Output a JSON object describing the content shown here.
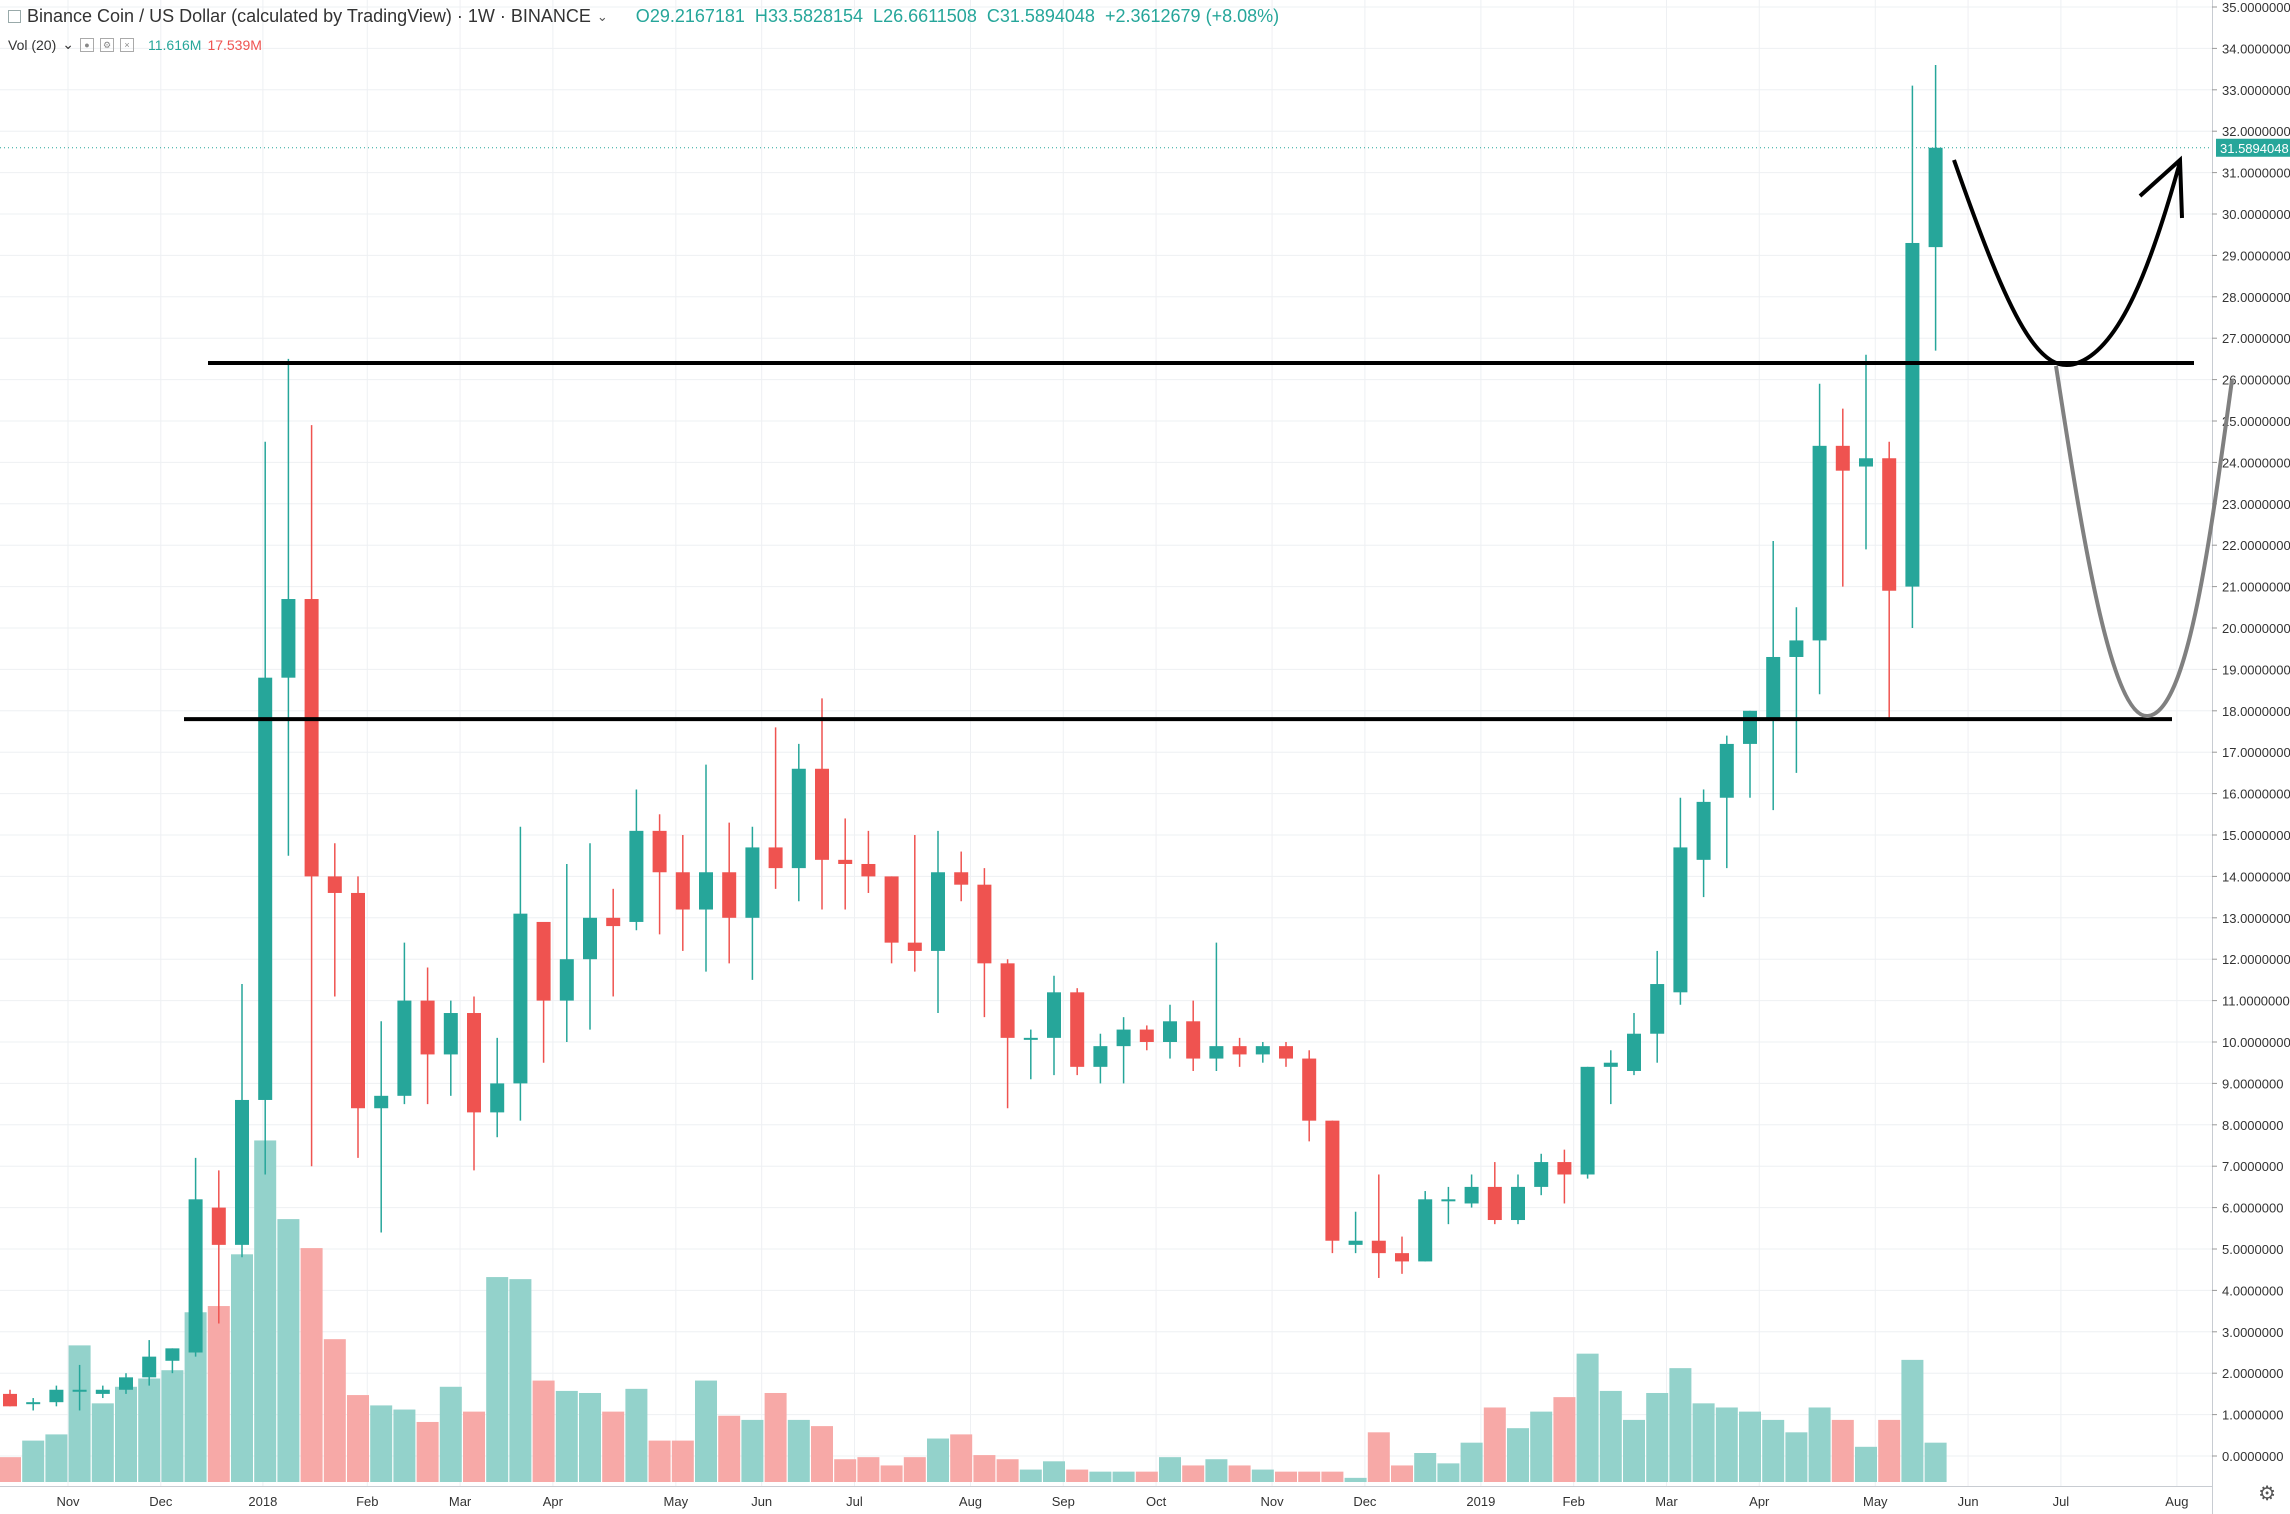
{
  "legend": {
    "symbol": "Binance Coin / US Dollar (calculated by TradingView) · 1W · BINANCE",
    "ohlc": {
      "o": "29.2167181",
      "h": "33.5828154",
      "l": "26.6611508",
      "c": "31.5894048",
      "change": "+2.3612679 (+8.08%)"
    }
  },
  "volume_legend": {
    "label": "Vol (20)",
    "v1": "11.616M",
    "v2": "17.539M"
  },
  "colors": {
    "up": "#26a69a",
    "down": "#ef5350",
    "vol_up": "#93d2cb",
    "vol_down": "#f7a9a7",
    "grid": "#eef0f3",
    "axis_text": "#333333",
    "annotation": "#000000",
    "annotation_alt": "#808080",
    "price_label_bg": "#26a69a"
  },
  "chart_data": {
    "type": "candlestick",
    "interval": "1W",
    "y_axis": {
      "min": 0,
      "max": 35,
      "step": 1,
      "tick_labels": [
        "0.0000000",
        "1.0000000",
        "2.0000000",
        "3.0000000",
        "4.0000000",
        "5.0000000",
        "6.0000000",
        "7.0000000",
        "8.0000000",
        "9.0000000",
        "10.0000000",
        "11.0000000",
        "12.0000000",
        "13.0000000",
        "14.0000000",
        "15.0000000",
        "16.0000000",
        "17.0000000",
        "18.0000000",
        "19.0000000",
        "20.0000000",
        "21.0000000",
        "22.0000000",
        "23.0000000",
        "24.0000000",
        "25.0000000",
        "26.0000000",
        "27.0000000",
        "28.0000000",
        "29.0000000",
        "30.0000000",
        "31.0000000",
        "32.0000000",
        "33.0000000",
        "34.0000000",
        "35.0000000"
      ],
      "current_price_label": "31.5894048"
    },
    "x_axis": {
      "labels": [
        {
          "text": "Nov",
          "week": 2.5
        },
        {
          "text": "Dec",
          "week": 6.5
        },
        {
          "text": "2018",
          "week": 10.9
        },
        {
          "text": "Feb",
          "week": 15.4
        },
        {
          "text": "Mar",
          "week": 19.4
        },
        {
          "text": "Apr",
          "week": 23.4
        },
        {
          "text": "May",
          "week": 28.7
        },
        {
          "text": "Jun",
          "week": 32.4
        },
        {
          "text": "Jul",
          "week": 36.4
        },
        {
          "text": "Aug",
          "week": 41.4
        },
        {
          "text": "Sep",
          "week": 45.4
        },
        {
          "text": "Oct",
          "week": 49.4
        },
        {
          "text": "Nov",
          "week": 54.4
        },
        {
          "text": "Dec",
          "week": 58.4
        },
        {
          "text": "2019",
          "week": 63.4
        },
        {
          "text": "Feb",
          "week": 67.4
        },
        {
          "text": "Mar",
          "week": 71.4
        },
        {
          "text": "Apr",
          "week": 75.4
        },
        {
          "text": "May",
          "week": 80.4
        },
        {
          "text": "Jun",
          "week": 84.4
        },
        {
          "text": "Jul",
          "week": 88.4
        },
        {
          "text": "Aug",
          "week": 93.4
        }
      ]
    },
    "candles": [
      {
        "o": 1.5,
        "h": 1.6,
        "l": 1.2,
        "c": 1.2,
        "v": 0.6
      },
      {
        "o": 1.3,
        "h": 1.4,
        "l": 1.1,
        "c": 1.3,
        "v": 1.0
      },
      {
        "o": 1.3,
        "h": 1.7,
        "l": 1.2,
        "c": 1.6,
        "v": 1.15
      },
      {
        "o": 1.6,
        "h": 2.2,
        "l": 1.1,
        "c": 1.6,
        "v": 3.3
      },
      {
        "o": 1.5,
        "h": 1.7,
        "l": 1.4,
        "c": 1.6,
        "v": 1.9
      },
      {
        "o": 1.6,
        "h": 2.0,
        "l": 1.5,
        "c": 1.9,
        "v": 2.3
      },
      {
        "o": 1.9,
        "h": 2.8,
        "l": 1.7,
        "c": 2.4,
        "v": 2.5
      },
      {
        "o": 2.3,
        "h": 2.6,
        "l": 2.0,
        "c": 2.6,
        "v": 2.7
      },
      {
        "o": 2.5,
        "h": 7.2,
        "l": 2.4,
        "c": 6.2,
        "v": 4.1
      },
      {
        "o": 6.0,
        "h": 6.9,
        "l": 3.2,
        "c": 5.1,
        "v": 4.25
      },
      {
        "o": 5.1,
        "h": 11.4,
        "l": 4.8,
        "c": 8.6,
        "v": 5.5
      },
      {
        "o": 8.6,
        "h": 24.5,
        "l": 6.8,
        "c": 18.8,
        "v": 8.25
      },
      {
        "o": 18.8,
        "h": 26.5,
        "l": 14.5,
        "c": 20.7,
        "v": 6.35
      },
      {
        "o": 20.7,
        "h": 24.9,
        "l": 7.0,
        "c": 14.0,
        "v": 5.65
      },
      {
        "o": 14.0,
        "h": 14.8,
        "l": 11.1,
        "c": 13.6,
        "v": 3.45
      },
      {
        "o": 13.6,
        "h": 14.0,
        "l": 7.2,
        "c": 8.4,
        "v": 2.1
      },
      {
        "o": 8.4,
        "h": 10.5,
        "l": 5.4,
        "c": 8.7,
        "v": 1.85
      },
      {
        "o": 8.7,
        "h": 12.4,
        "l": 8.5,
        "c": 11.0,
        "v": 1.75
      },
      {
        "o": 11.0,
        "h": 11.8,
        "l": 8.5,
        "c": 9.7,
        "v": 1.45
      },
      {
        "o": 9.7,
        "h": 11.0,
        "l": 8.7,
        "c": 10.7,
        "v": 2.3
      },
      {
        "o": 10.7,
        "h": 11.1,
        "l": 6.9,
        "c": 8.3,
        "v": 1.7
      },
      {
        "o": 8.3,
        "h": 10.1,
        "l": 7.7,
        "c": 9.0,
        "v": 4.95
      },
      {
        "o": 9.0,
        "h": 15.2,
        "l": 8.1,
        "c": 13.1,
        "v": 4.9
      },
      {
        "o": 12.9,
        "h": 12.9,
        "l": 9.5,
        "c": 11.0,
        "v": 2.45
      },
      {
        "o": 11.0,
        "h": 14.3,
        "l": 10.0,
        "c": 12.0,
        "v": 2.2
      },
      {
        "o": 12.0,
        "h": 14.8,
        "l": 10.3,
        "c": 13.0,
        "v": 2.15
      },
      {
        "o": 13.0,
        "h": 13.7,
        "l": 11.1,
        "c": 12.8,
        "v": 1.7
      },
      {
        "o": 12.9,
        "h": 16.1,
        "l": 12.7,
        "c": 15.1,
        "v": 2.25
      },
      {
        "o": 15.1,
        "h": 15.5,
        "l": 12.6,
        "c": 14.1,
        "v": 1.0
      },
      {
        "o": 14.1,
        "h": 15.0,
        "l": 12.2,
        "c": 13.2,
        "v": 1.0
      },
      {
        "o": 13.2,
        "h": 16.7,
        "l": 11.7,
        "c": 14.1,
        "v": 2.45
      },
      {
        "o": 14.1,
        "h": 15.3,
        "l": 11.9,
        "c": 13.0,
        "v": 1.6
      },
      {
        "o": 13.0,
        "h": 15.2,
        "l": 11.5,
        "c": 14.7,
        "v": 1.5
      },
      {
        "o": 14.7,
        "h": 17.6,
        "l": 13.7,
        "c": 14.2,
        "v": 2.15
      },
      {
        "o": 14.2,
        "h": 17.2,
        "l": 13.4,
        "c": 16.6,
        "v": 1.5
      },
      {
        "o": 16.6,
        "h": 18.3,
        "l": 13.2,
        "c": 14.4,
        "v": 1.35
      },
      {
        "o": 14.4,
        "h": 15.4,
        "l": 13.2,
        "c": 14.3,
        "v": 0.55
      },
      {
        "o": 14.3,
        "h": 15.1,
        "l": 13.6,
        "c": 14.0,
        "v": 0.6
      },
      {
        "o": 14.0,
        "h": 14.0,
        "l": 11.9,
        "c": 12.4,
        "v": 0.4
      },
      {
        "o": 12.4,
        "h": 15.0,
        "l": 11.7,
        "c": 12.2,
        "v": 0.6
      },
      {
        "o": 12.2,
        "h": 15.1,
        "l": 10.7,
        "c": 14.1,
        "v": 1.05
      },
      {
        "o": 14.1,
        "h": 14.6,
        "l": 13.4,
        "c": 13.8,
        "v": 1.15
      },
      {
        "o": 13.8,
        "h": 14.2,
        "l": 10.6,
        "c": 11.9,
        "v": 0.65
      },
      {
        "o": 11.9,
        "h": 12.0,
        "l": 8.4,
        "c": 10.1,
        "v": 0.55
      },
      {
        "o": 10.1,
        "h": 10.3,
        "l": 9.1,
        "c": 10.1,
        "v": 0.3
      },
      {
        "o": 10.1,
        "h": 11.6,
        "l": 9.2,
        "c": 11.2,
        "v": 0.5
      },
      {
        "o": 11.2,
        "h": 11.3,
        "l": 9.2,
        "c": 9.4,
        "v": 0.3
      },
      {
        "o": 9.4,
        "h": 10.2,
        "l": 9.0,
        "c": 9.9,
        "v": 0.25
      },
      {
        "o": 9.9,
        "h": 10.6,
        "l": 9.0,
        "c": 10.3,
        "v": 0.25
      },
      {
        "o": 10.3,
        "h": 10.4,
        "l": 9.8,
        "c": 10.0,
        "v": 0.25
      },
      {
        "o": 10.0,
        "h": 10.9,
        "l": 9.6,
        "c": 10.5,
        "v": 0.6
      },
      {
        "o": 10.5,
        "h": 11.0,
        "l": 9.3,
        "c": 9.6,
        "v": 0.4
      },
      {
        "o": 9.6,
        "h": 12.4,
        "l": 9.3,
        "c": 9.9,
        "v": 0.55
      },
      {
        "o": 9.9,
        "h": 10.1,
        "l": 9.4,
        "c": 9.7,
        "v": 0.4
      },
      {
        "o": 9.7,
        "h": 10.0,
        "l": 9.5,
        "c": 9.9,
        "v": 0.3
      },
      {
        "o": 9.9,
        "h": 10.0,
        "l": 9.4,
        "c": 9.6,
        "v": 0.25
      },
      {
        "o": 9.6,
        "h": 9.8,
        "l": 7.6,
        "c": 8.1,
        "v": 0.25
      },
      {
        "o": 8.1,
        "h": 8.1,
        "l": 4.9,
        "c": 5.2,
        "v": 0.25
      },
      {
        "o": 5.1,
        "h": 5.9,
        "l": 4.9,
        "c": 5.2,
        "v": 0.1
      },
      {
        "o": 5.2,
        "h": 6.8,
        "l": 4.3,
        "c": 4.9,
        "v": 1.2
      },
      {
        "o": 4.9,
        "h": 5.3,
        "l": 4.4,
        "c": 4.7,
        "v": 0.4
      },
      {
        "o": 4.7,
        "h": 6.4,
        "l": 4.7,
        "c": 6.2,
        "v": 0.7
      },
      {
        "o": 6.2,
        "h": 6.5,
        "l": 5.6,
        "c": 6.2,
        "v": 0.45
      },
      {
        "o": 6.1,
        "h": 6.8,
        "l": 6.0,
        "c": 6.5,
        "v": 0.95
      },
      {
        "o": 6.5,
        "h": 7.1,
        "l": 5.6,
        "c": 5.7,
        "v": 1.8
      },
      {
        "o": 5.7,
        "h": 6.8,
        "l": 5.6,
        "c": 6.5,
        "v": 1.3
      },
      {
        "o": 6.5,
        "h": 7.3,
        "l": 6.3,
        "c": 7.1,
        "v": 1.7
      },
      {
        "o": 7.1,
        "h": 7.4,
        "l": 6.1,
        "c": 6.8,
        "v": 2.05
      },
      {
        "o": 6.8,
        "h": 9.4,
        "l": 6.7,
        "c": 9.4,
        "v": 3.1
      },
      {
        "o": 9.4,
        "h": 9.8,
        "l": 8.5,
        "c": 9.5,
        "v": 2.2
      },
      {
        "o": 9.3,
        "h": 10.7,
        "l": 9.2,
        "c": 10.2,
        "v": 1.5
      },
      {
        "o": 10.2,
        "h": 12.2,
        "l": 9.5,
        "c": 11.4,
        "v": 2.15
      },
      {
        "o": 11.2,
        "h": 15.9,
        "l": 10.9,
        "c": 14.7,
        "v": 2.75
      },
      {
        "o": 14.4,
        "h": 16.1,
        "l": 13.5,
        "c": 15.8,
        "v": 1.9
      },
      {
        "o": 15.9,
        "h": 17.4,
        "l": 14.2,
        "c": 17.2,
        "v": 1.8
      },
      {
        "o": 17.2,
        "h": 18.0,
        "l": 15.9,
        "c": 18.0,
        "v": 1.7
      },
      {
        "o": 17.8,
        "h": 22.1,
        "l": 15.6,
        "c": 19.3,
        "v": 1.5
      },
      {
        "o": 19.3,
        "h": 20.5,
        "l": 16.5,
        "c": 19.7,
        "v": 1.2
      },
      {
        "o": 19.7,
        "h": 25.9,
        "l": 18.4,
        "c": 24.4,
        "v": 1.8
      },
      {
        "o": 24.4,
        "h": 25.3,
        "l": 21.0,
        "c": 23.8,
        "v": 1.5
      },
      {
        "o": 23.9,
        "h": 26.6,
        "l": 21.9,
        "c": 24.1,
        "v": 0.85
      },
      {
        "o": 24.1,
        "h": 24.5,
        "l": 17.8,
        "c": 20.9,
        "v": 1.5
      },
      {
        "o": 21.0,
        "h": 33.1,
        "l": 20.0,
        "c": 29.3,
        "v": 2.95
      },
      {
        "o": 29.2,
        "h": 33.6,
        "l": 26.7,
        "c": 31.6,
        "v": 0.95
      }
    ],
    "annotations": {
      "resistance_level": 26.4,
      "support_level": 17.8
    }
  }
}
